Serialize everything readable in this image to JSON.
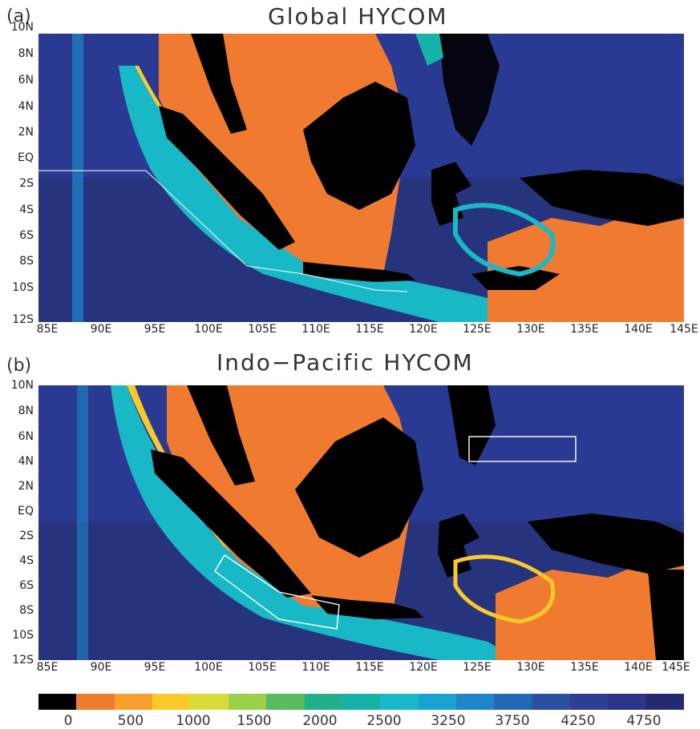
{
  "panels": [
    {
      "letter": "(a)",
      "title": "Global HYCOM"
    },
    {
      "letter": "(b)",
      "title": "Indo−Pacific HYCOM"
    }
  ],
  "axes": {
    "lat_labels": [
      "10N",
      "8N",
      "6N",
      "4N",
      "2N",
      "EQ",
      "2S",
      "4S",
      "6S",
      "8S",
      "10S",
      "12S"
    ],
    "lon_labels": [
      "85E",
      "90E",
      "95E",
      "100E",
      "105E",
      "110E",
      "115E",
      "120E",
      "125E",
      "130E",
      "135E",
      "140E",
      "145E"
    ]
  },
  "colorbar": {
    "colors": [
      "#000000",
      "#f07a2f",
      "#f7a12c",
      "#fcc92a",
      "#d8db3a",
      "#9bd04c",
      "#58bb5e",
      "#1fb08a",
      "#17b3a8",
      "#19b8c7",
      "#1aa3d1",
      "#1d86c9",
      "#2268b7",
      "#2a4fa3",
      "#2d3f95",
      "#2b3487",
      "#25296f"
    ],
    "labels": [
      "0",
      "500",
      "1000",
      "1500",
      "2000",
      "2500",
      "3250",
      "3750",
      "4250",
      "4750"
    ]
  }
}
